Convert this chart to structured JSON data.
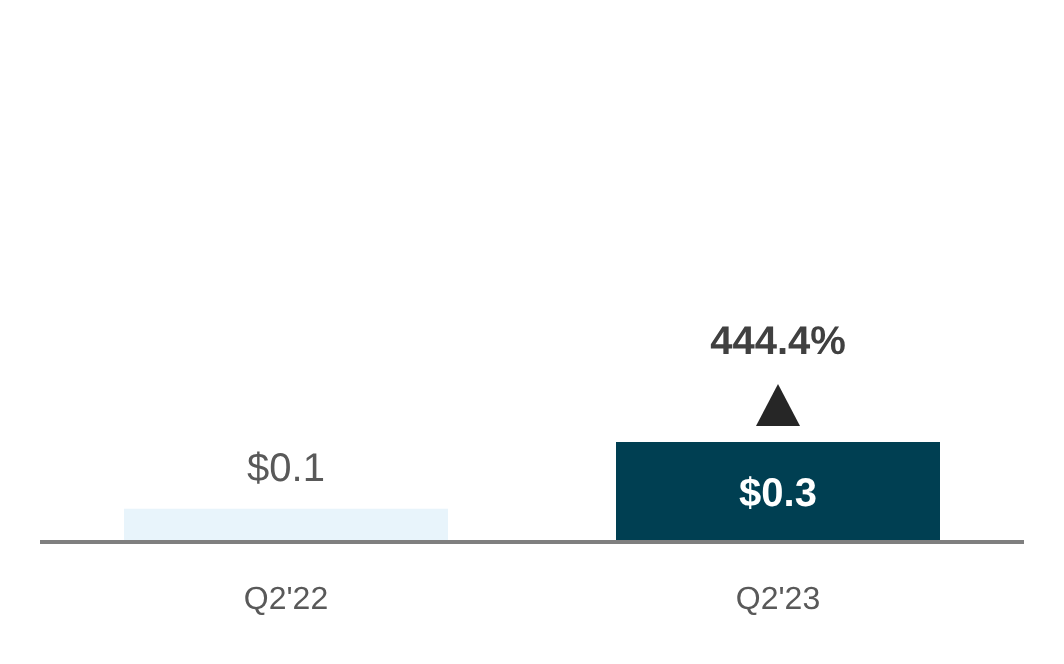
{
  "chart_data": {
    "type": "bar",
    "categories": [
      "Q2'22",
      "Q2'23"
    ],
    "values": [
      0.1,
      0.3
    ],
    "colors": [
      "#e8f4fb",
      "#003f52"
    ],
    "value_labels": [
      "$0.1",
      "$0.3"
    ],
    "annotations": [
      {
        "text": "444.4%",
        "x": "Q2'23",
        "y": 0.3
      }
    ]
  }
}
